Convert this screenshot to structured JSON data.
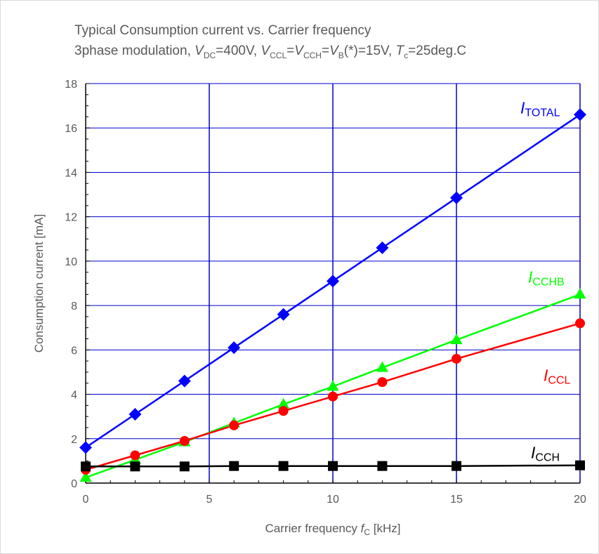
{
  "title": {
    "line1": "Typical Consumption current vs. Carrier frequency",
    "line2": {
      "t0": "3phase modulation, ",
      "v1": "V",
      "s1": "DC",
      "t1": "=400V, ",
      "v2": "V",
      "s2": "CCL",
      "t2": "=",
      "v3": "V",
      "s3": "CCH",
      "t3": "=",
      "v4": "V",
      "s4": "B",
      "t4": "(*)=15V, ",
      "v5": "T",
      "s5": "c",
      "t5": "=25deg.C"
    }
  },
  "chart_data": {
    "type": "line",
    "xlabel": {
      "prefix": "Carrier frequency ",
      "var": "f",
      "sub": "C",
      "unit": " [kHz]"
    },
    "ylabel": "Consumption current [mA]",
    "xlim": [
      0,
      20
    ],
    "ylim": [
      0,
      18
    ],
    "xticks": [
      "0",
      "5",
      "10",
      "15",
      "20"
    ],
    "yticks": [
      "0",
      "2",
      "4",
      "6",
      "8",
      "10",
      "12",
      "14",
      "16",
      "18"
    ],
    "x": [
      0,
      2,
      4,
      6,
      8,
      10,
      12,
      15,
      20
    ],
    "grid": true,
    "series": [
      {
        "name": "TOTAL",
        "var": "I",
        "color": "#0000ff",
        "marker": "diamond",
        "values": [
          1.6,
          3.1,
          4.6,
          6.1,
          7.6,
          9.1,
          10.6,
          12.85,
          16.6
        ]
      },
      {
        "name": "CCHB",
        "var": "I",
        "color": "#00ff00",
        "marker": "triangle",
        "values": [
          0.25,
          1.05,
          1.85,
          2.7,
          3.55,
          4.35,
          5.2,
          6.45,
          8.5
        ]
      },
      {
        "name": "CCL",
        "var": "I",
        "color": "#ff0000",
        "marker": "circle",
        "values": [
          0.6,
          1.25,
          1.9,
          2.6,
          3.25,
          3.9,
          4.55,
          5.6,
          7.2
        ]
      },
      {
        "name": "CCH",
        "var": "I",
        "color": "#000000",
        "marker": "square",
        "values": [
          0.75,
          0.75,
          0.75,
          0.77,
          0.77,
          0.77,
          0.77,
          0.77,
          0.8
        ]
      }
    ]
  }
}
